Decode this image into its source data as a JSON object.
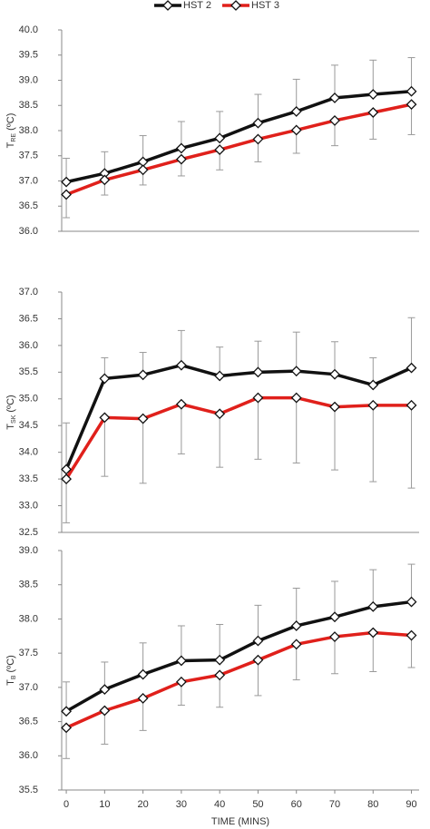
{
  "chart_data": [
    {
      "type": "line",
      "ylabel": {
        "main": "T",
        "sub": "RE",
        "unit": "(ºC)"
      },
      "x": [
        0,
        10,
        20,
        30,
        40,
        50,
        60,
        70,
        80,
        90
      ],
      "xlim": [
        -1.2,
        92
      ],
      "ylim": [
        36,
        40
      ],
      "yticks": [
        {
          "value": 36,
          "label": "36.0"
        },
        36.5,
        {
          "value": 37,
          "label": "37.0"
        },
        37.5,
        {
          "value": 38,
          "label": "38.0"
        },
        38.5,
        {
          "value": 39,
          "label": "39.0"
        },
        39.5,
        {
          "value": 40,
          "label": "40.0"
        }
      ],
      "legend": "top",
      "series": [
        {
          "name": "HST 2",
          "color": "#111111",
          "error_side": "up",
          "values": [
            36.98,
            37.15,
            37.38,
            37.65,
            37.85,
            38.15,
            38.38,
            38.65,
            38.72,
            38.78
          ],
          "errors": [
            0.47,
            0.43,
            0.52,
            0.53,
            0.53,
            0.57,
            0.64,
            0.65,
            0.68,
            0.67
          ]
        },
        {
          "name": "HST 3",
          "color": "#e0201b",
          "error_side": "down",
          "values": [
            36.73,
            37.02,
            37.22,
            37.43,
            37.62,
            37.83,
            38.01,
            38.2,
            38.36,
            38.52
          ],
          "errors": [
            0.46,
            0.3,
            0.3,
            0.33,
            0.4,
            0.45,
            0.46,
            0.5,
            0.53,
            0.6
          ]
        }
      ]
    },
    {
      "type": "line",
      "ylabel": {
        "main": "T",
        "sub": "SK",
        "unit": "(ºC)"
      },
      "x": [
        0,
        10,
        20,
        30,
        40,
        50,
        60,
        70,
        80,
        90
      ],
      "xlim": [
        -1.2,
        92
      ],
      "ylim": [
        32.5,
        37
      ],
      "yticks": [
        32.5,
        {
          "value": 33,
          "label": "33.0"
        },
        33.5,
        {
          "value": 34,
          "label": "34.0"
        },
        34.5,
        {
          "value": 35,
          "label": "35.0"
        },
        35.5,
        {
          "value": 36,
          "label": "36.0"
        },
        36.5,
        {
          "value": 37,
          "label": "37.0"
        }
      ],
      "series": [
        {
          "name": "HST 2",
          "color": "#111111",
          "error_side": "up",
          "values": [
            33.68,
            35.38,
            35.45,
            35.63,
            35.43,
            35.5,
            35.52,
            35.46,
            35.26,
            35.58
          ],
          "errors": [
            0.87,
            0.39,
            0.42,
            0.65,
            0.54,
            0.58,
            0.73,
            0.61,
            0.51,
            0.94
          ]
        },
        {
          "name": "HST 3",
          "color": "#e0201b",
          "error_side": "down",
          "values": [
            33.5,
            34.65,
            34.63,
            34.9,
            34.72,
            35.02,
            35.02,
            34.85,
            34.88,
            34.88
          ],
          "errors": [
            0.82,
            1.1,
            1.21,
            0.93,
            1.0,
            1.15,
            1.22,
            1.18,
            1.43,
            1.55
          ]
        }
      ]
    },
    {
      "type": "line",
      "ylabel": {
        "main": "T",
        "sub": "B",
        "unit": "(ºC)"
      },
      "xlabel": "TIME (MINS)",
      "x": [
        0,
        10,
        20,
        30,
        40,
        50,
        60,
        70,
        80,
        90
      ],
      "xlim": [
        -1.2,
        92
      ],
      "xticks": [
        0,
        10,
        20,
        30,
        40,
        50,
        60,
        70,
        80,
        90
      ],
      "ylim": [
        35.5,
        39
      ],
      "yticks": [
        35.5,
        {
          "value": 36,
          "label": "36.0"
        },
        36.5,
        {
          "value": 37,
          "label": "37.0"
        },
        37.5,
        {
          "value": 38,
          "label": "38.0"
        },
        38.5,
        {
          "value": 39,
          "label": "39.0"
        }
      ],
      "series": [
        {
          "name": "HST 2",
          "color": "#111111",
          "error_side": "up",
          "values": [
            36.65,
            36.97,
            37.19,
            37.39,
            37.4,
            37.68,
            37.9,
            38.03,
            38.18,
            38.25
          ],
          "errors": [
            0.43,
            0.4,
            0.46,
            0.51,
            0.52,
            0.52,
            0.55,
            0.52,
            0.54,
            0.55
          ]
        },
        {
          "name": "HST 3",
          "color": "#e0201b",
          "error_side": "down",
          "values": [
            36.41,
            36.66,
            36.84,
            37.08,
            37.18,
            37.4,
            37.63,
            37.74,
            37.8,
            37.76
          ],
          "errors": [
            0.45,
            0.49,
            0.47,
            0.34,
            0.47,
            0.52,
            0.52,
            0.54,
            0.57,
            0.47
          ]
        }
      ]
    }
  ]
}
